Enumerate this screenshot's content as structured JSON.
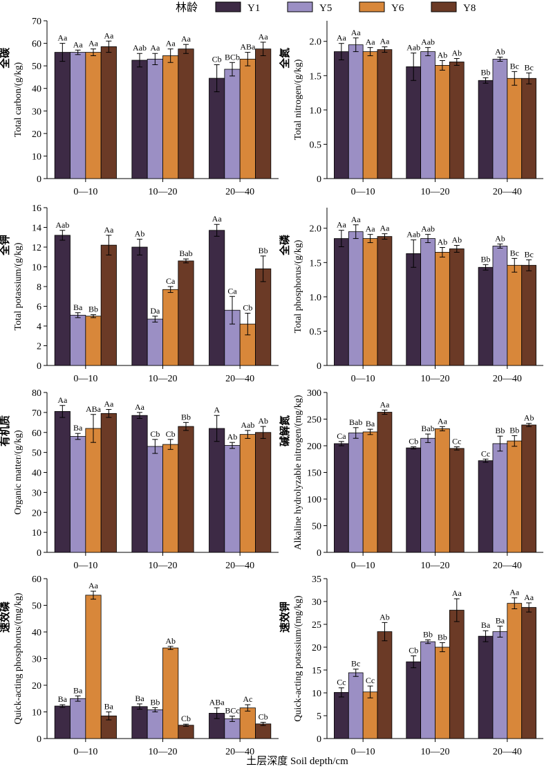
{
  "legend": {
    "title": "林龄",
    "items": [
      {
        "label": "Y1",
        "color": "#3d2a45"
      },
      {
        "label": "Y5",
        "color": "#9b8fc4"
      },
      {
        "label": "Y6",
        "color": "#d8873a"
      },
      {
        "label": "Y8",
        "color": "#6b3a26"
      }
    ]
  },
  "xlabel": "土层深度 Soil depth/cm",
  "chart_data": [
    {
      "type": "bar",
      "ylabel_cn": "全碳",
      "ylabel_en": "Total carbon/(g/kg)",
      "ylim": [
        0,
        70
      ],
      "yticks": [
        0,
        10,
        20,
        30,
        40,
        50,
        60,
        70
      ],
      "categories": [
        "0—10",
        "10—20",
        "20—40"
      ],
      "series": [
        {
          "name": "Y1",
          "values": [
            56,
            52.5,
            44.5
          ],
          "errors": [
            4,
            3,
            6
          ],
          "labels": [
            "Aa",
            "Aab",
            "Cb"
          ]
        },
        {
          "name": "Y5",
          "values": [
            56,
            53,
            48.5
          ],
          "errors": [
            1,
            2.5,
            3
          ],
          "labels": [
            "Aa",
            "Aa",
            "BCb"
          ]
        },
        {
          "name": "Y6",
          "values": [
            56,
            54.5,
            53
          ],
          "errors": [
            1.5,
            3,
            3
          ],
          "labels": [
            "Aa",
            "Aa",
            "ABa"
          ]
        },
        {
          "name": "Y8",
          "values": [
            58.5,
            57.5,
            57.5
          ],
          "errors": [
            2.5,
            2,
            3
          ],
          "labels": [
            "Aa",
            "Aa",
            "Aa"
          ]
        }
      ]
    },
    {
      "type": "bar",
      "ylabel_cn": "全氮",
      "ylabel_en": "Total nitrogen/(g/kg)",
      "ylim": [
        0,
        2.3
      ],
      "yticks": [
        0,
        0.5,
        1.0,
        1.5,
        2.0
      ],
      "ytick_labels": [
        "0",
        "0.5",
        "1.0",
        "1.5",
        "2.0"
      ],
      "categories": [
        "0—10",
        "10—20",
        "20—40"
      ],
      "series": [
        {
          "name": "Y1",
          "values": [
            1.85,
            1.63,
            1.43
          ],
          "errors": [
            0.12,
            0.2,
            0.04
          ],
          "labels": [
            "Aa",
            "Aab",
            "Bb"
          ]
        },
        {
          "name": "Y5",
          "values": [
            1.95,
            1.85,
            1.74
          ],
          "errors": [
            0.1,
            0.06,
            0.03
          ],
          "labels": [
            "Aa",
            "Aab",
            "Ab"
          ]
        },
        {
          "name": "Y6",
          "values": [
            1.85,
            1.65,
            1.46
          ],
          "errors": [
            0.06,
            0.07,
            0.1
          ],
          "labels": [
            "Aa",
            "Ab",
            "Bc"
          ]
        },
        {
          "name": "Y8",
          "values": [
            1.88,
            1.7,
            1.46
          ],
          "errors": [
            0.04,
            0.05,
            0.08
          ],
          "labels": [
            "Aa",
            "Ab",
            "Bc"
          ]
        }
      ]
    },
    {
      "type": "bar",
      "ylabel_cn": "全钾",
      "ylabel_en": "Total potassium/(g/kg)",
      "ylim": [
        0,
        16
      ],
      "yticks": [
        0,
        2,
        4,
        6,
        8,
        10,
        12,
        14,
        16
      ],
      "categories": [
        "0—10",
        "10—20",
        "20—40"
      ],
      "series": [
        {
          "name": "Y1",
          "values": [
            13.2,
            12.0,
            13.7
          ],
          "errors": [
            0.5,
            0.8,
            0.6
          ],
          "labels": [
            "Aab",
            "Ab",
            "Aa"
          ]
        },
        {
          "name": "Y5",
          "values": [
            5.1,
            4.7,
            5.6
          ],
          "errors": [
            0.25,
            0.3,
            1.4
          ],
          "labels": [
            "Ba",
            "Da",
            "Ca"
          ]
        },
        {
          "name": "Y6",
          "values": [
            5.0,
            7.7,
            4.2
          ],
          "errors": [
            0.15,
            0.3,
            1.1
          ],
          "labels": [
            "Bb",
            "Ca",
            "Cb"
          ]
        },
        {
          "name": "Y8",
          "values": [
            12.2,
            10.6,
            9.8
          ],
          "errors": [
            1.0,
            0.2,
            1.3
          ],
          "labels": [
            "Aa",
            "Bab",
            "Bb"
          ]
        }
      ]
    },
    {
      "type": "bar",
      "ylabel_cn": "全磷",
      "ylabel_en": "Total phosphorus/(g/kg)",
      "ylim": [
        0,
        2.3
      ],
      "yticks": [
        0,
        0.5,
        1.0,
        1.5,
        2.0
      ],
      "ytick_labels": [
        "0",
        "0.5",
        "1.0",
        "1.5",
        "2.0"
      ],
      "categories": [
        "0—10",
        "10—20",
        "20—40"
      ],
      "series": [
        {
          "name": "Y1",
          "values": [
            1.85,
            1.63,
            1.43
          ],
          "errors": [
            0.12,
            0.2,
            0.04
          ],
          "labels": [
            "Aa",
            "Aab",
            "Bb"
          ]
        },
        {
          "name": "Y5",
          "values": [
            1.95,
            1.85,
            1.74
          ],
          "errors": [
            0.1,
            0.06,
            0.03
          ],
          "labels": [
            "Aa",
            "Aab",
            "Ab"
          ]
        },
        {
          "name": "Y6",
          "values": [
            1.85,
            1.65,
            1.46
          ],
          "errors": [
            0.06,
            0.07,
            0.1
          ],
          "labels": [
            "Aa",
            "Ab",
            "Bc"
          ]
        },
        {
          "name": "Y8",
          "values": [
            1.88,
            1.7,
            1.46
          ],
          "errors": [
            0.04,
            0.05,
            0.08
          ],
          "labels": [
            "Aa",
            "Ab",
            "Bc"
          ]
        }
      ]
    },
    {
      "type": "bar",
      "ylabel_cn": "有机质",
      "ylabel_en": "Organic matter/(g/kg)",
      "ylim": [
        0,
        80
      ],
      "yticks": [
        0,
        10,
        20,
        30,
        40,
        50,
        60,
        70,
        80
      ],
      "categories": [
        "0—10",
        "10—20",
        "20—40"
      ],
      "series": [
        {
          "name": "Y1",
          "values": [
            70.5,
            68.5,
            62
          ],
          "errors": [
            3,
            1.5,
            6.5
          ],
          "labels": [
            "Aa",
            "Aa",
            "A"
          ]
        },
        {
          "name": "Y5",
          "values": [
            58,
            53,
            53.5
          ],
          "errors": [
            1.5,
            3.5,
            1.5
          ],
          "labels": [
            "Ba",
            "Cb",
            "Ab"
          ]
        },
        {
          "name": "Y6",
          "values": [
            62,
            54,
            59
          ],
          "errors": [
            7,
            2.5,
            2
          ],
          "labels": [
            "ABa",
            "Cb",
            "Aab"
          ]
        },
        {
          "name": "Y8",
          "values": [
            69.5,
            63,
            60
          ],
          "errors": [
            2,
            2,
            3
          ],
          "labels": [
            "Aa",
            "Bb",
            "Ab"
          ]
        }
      ]
    },
    {
      "type": "bar",
      "ylabel_cn": "碱解氮",
      "ylabel_en": "Alkaline hydrolyzable nitrogen/(mg/kg)",
      "ylim": [
        0,
        300
      ],
      "yticks": [
        0,
        50,
        100,
        150,
        200,
        250,
        300
      ],
      "categories": [
        "0—10",
        "10—20",
        "20—40"
      ],
      "series": [
        {
          "name": "Y1",
          "values": [
            204,
            196,
            172
          ],
          "errors": [
            4,
            2,
            3
          ],
          "labels": [
            "Ca",
            "Cb",
            "Cc"
          ]
        },
        {
          "name": "Y5",
          "values": [
            224,
            214,
            204
          ],
          "errors": [
            10,
            8,
            14
          ],
          "labels": [
            "Bab",
            "Bab",
            "Bb"
          ]
        },
        {
          "name": "Y6",
          "values": [
            226,
            232,
            209
          ],
          "errors": [
            5,
            4,
            10
          ],
          "labels": [
            "Ba",
            "Aa",
            "Bb"
          ]
        },
        {
          "name": "Y8",
          "values": [
            263,
            195,
            239
          ],
          "errors": [
            4,
            3,
            3
          ],
          "labels": [
            "Aa",
            "Cc",
            "Ab"
          ]
        }
      ]
    },
    {
      "type": "bar",
      "ylabel_cn": "速效磷",
      "ylabel_en": "Quick-acting phosphorus/(mg/kg)",
      "ylim": [
        0,
        60
      ],
      "yticks": [
        0,
        10,
        20,
        30,
        40,
        50,
        60
      ],
      "categories": [
        "0—10",
        "10—20",
        "20—40"
      ],
      "series": [
        {
          "name": "Y1",
          "values": [
            12.2,
            12.0,
            9.5
          ],
          "errors": [
            0.5,
            1.0,
            2.0
          ],
          "labels": [
            "Ba",
            "Ba",
            "ABa"
          ]
        },
        {
          "name": "Y5",
          "values": [
            15.0,
            10.8,
            7.4
          ],
          "errors": [
            1.0,
            0.8,
            1.0
          ],
          "labels": [
            "Ba",
            "Bb",
            "BCc"
          ]
        },
        {
          "name": "Y6",
          "values": [
            53.8,
            34.0,
            11.5
          ],
          "errors": [
            1.5,
            0.6,
            1.2
          ],
          "labels": [
            "Aa",
            "Ab",
            "Ac"
          ]
        },
        {
          "name": "Y8",
          "values": [
            8.5,
            5.0,
            5.5
          ],
          "errors": [
            1.5,
            0.4,
            0.6
          ],
          "labels": [
            "Ba",
            "Cb",
            "Cb"
          ]
        }
      ]
    },
    {
      "type": "bar",
      "ylabel_cn": "速效钾",
      "ylabel_en": "Quick-acting potassium/(mg/kg)",
      "ylim": [
        0,
        35
      ],
      "yticks": [
        0,
        5,
        10,
        15,
        20,
        25,
        30,
        35
      ],
      "categories": [
        "0—10",
        "10—20",
        "20—40"
      ],
      "series": [
        {
          "name": "Y1",
          "values": [
            10.1,
            16.8,
            22.4
          ],
          "errors": [
            1.0,
            1.3,
            1.2
          ],
          "labels": [
            "Cc",
            "Cb",
            "Ba"
          ]
        },
        {
          "name": "Y5",
          "values": [
            14.4,
            21.2,
            23.4
          ],
          "errors": [
            0.8,
            0.4,
            1.2
          ],
          "labels": [
            "Bc",
            "Bb",
            "Ba"
          ]
        },
        {
          "name": "Y6",
          "values": [
            10.2,
            20.0,
            29.6
          ],
          "errors": [
            1.3,
            1.0,
            1.2
          ],
          "labels": [
            "Cc",
            "Bb",
            "Aa"
          ]
        },
        {
          "name": "Y8",
          "values": [
            23.4,
            28.1,
            28.7
          ],
          "errors": [
            2.0,
            2.5,
            1.0
          ],
          "labels": [
            "Ab",
            "Aa",
            "Aa"
          ]
        }
      ]
    }
  ]
}
